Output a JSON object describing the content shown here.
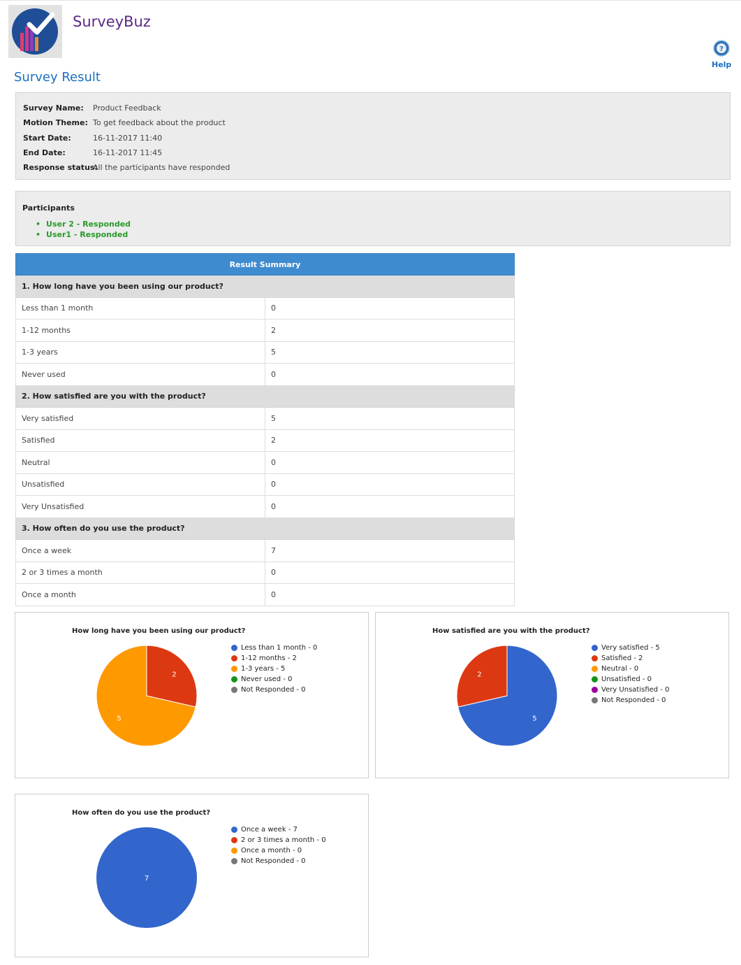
{
  "app": {
    "title": "SurveyBuz",
    "help_label": "Help"
  },
  "page": {
    "title": "Survey Result"
  },
  "survey": {
    "fields": [
      {
        "label": "Survey Name:",
        "value": "Product Feedback"
      },
      {
        "label": "Motion Theme:",
        "value": "To get feedback about the product"
      },
      {
        "label": "Start Date:",
        "value": "16-11-2017 11:40"
      },
      {
        "label": "End Date:",
        "value": "16-11-2017 11:45"
      },
      {
        "label": "Response status:",
        "value": "All the participants have responded"
      }
    ]
  },
  "participants": {
    "title": "Participants",
    "items": [
      "User 2 - Responded",
      "User1 - Responded"
    ]
  },
  "summary": {
    "header": "Result Summary",
    "questions": [
      {
        "question": "1. How long have you been using our product?",
        "answers": [
          {
            "label": "Less than 1 month",
            "count": "0"
          },
          {
            "label": "1-12 months",
            "count": "2"
          },
          {
            "label": "1-3 years",
            "count": "5"
          },
          {
            "label": "Never used",
            "count": "0"
          }
        ]
      },
      {
        "question": "2. How satisfied are you with the product?",
        "answers": [
          {
            "label": "Very satisfied",
            "count": "5"
          },
          {
            "label": "Satisfied",
            "count": "2"
          },
          {
            "label": "Neutral",
            "count": "0"
          },
          {
            "label": "Unsatisfied",
            "count": "0"
          },
          {
            "label": "Very Unsatisfied",
            "count": "0"
          }
        ]
      },
      {
        "question": "3. How often do you use the product?",
        "answers": [
          {
            "label": "Once a week",
            "count": "7"
          },
          {
            "label": "2 or 3 times a month",
            "count": "0"
          },
          {
            "label": "Once a month",
            "count": "0"
          }
        ]
      }
    ]
  },
  "chart_data": [
    {
      "type": "pie",
      "title": "How long have you been using our product?",
      "categories": [
        "Less than 1 month",
        "1-12 months",
        "1-3 years",
        "Never used",
        "Not Responded"
      ],
      "values": [
        0,
        2,
        5,
        0,
        0
      ],
      "legend": [
        "Less than 1 month - 0",
        "1-12 months - 2",
        "1-3 years - 5",
        "Never used - 0",
        "Not Responded - 0"
      ],
      "colors": [
        "#3366cc",
        "#dc3912",
        "#ff9900",
        "#109618",
        "#777777"
      ],
      "legend_position": "right"
    },
    {
      "type": "pie",
      "title": "How satisfied are you with the product?",
      "categories": [
        "Very satisfied",
        "Satisfied",
        "Neutral",
        "Unsatisfied",
        "Very Unsatisfied",
        "Not Responded"
      ],
      "values": [
        5,
        2,
        0,
        0,
        0,
        0
      ],
      "legend": [
        "Very satisfied - 5",
        "Satisfied - 2",
        "Neutral - 0",
        "Unsatisfied - 0",
        "Very Unsatisfied - 0",
        "Not Responded - 0"
      ],
      "colors": [
        "#3366cc",
        "#dc3912",
        "#ff9900",
        "#109618",
        "#990099",
        "#777777"
      ],
      "legend_position": "right"
    },
    {
      "type": "pie",
      "title": "How often do you use the product?",
      "categories": [
        "Once a week",
        "2 or 3 times a month",
        "Once a month",
        "Not Responded"
      ],
      "values": [
        7,
        0,
        0,
        0
      ],
      "legend": [
        "Once a week - 7",
        "2 or 3 times a month - 0",
        "Once a month - 0",
        "Not Responded - 0"
      ],
      "colors": [
        "#3366cc",
        "#dc3912",
        "#ff9900",
        "#777777"
      ],
      "legend_position": "right"
    }
  ]
}
